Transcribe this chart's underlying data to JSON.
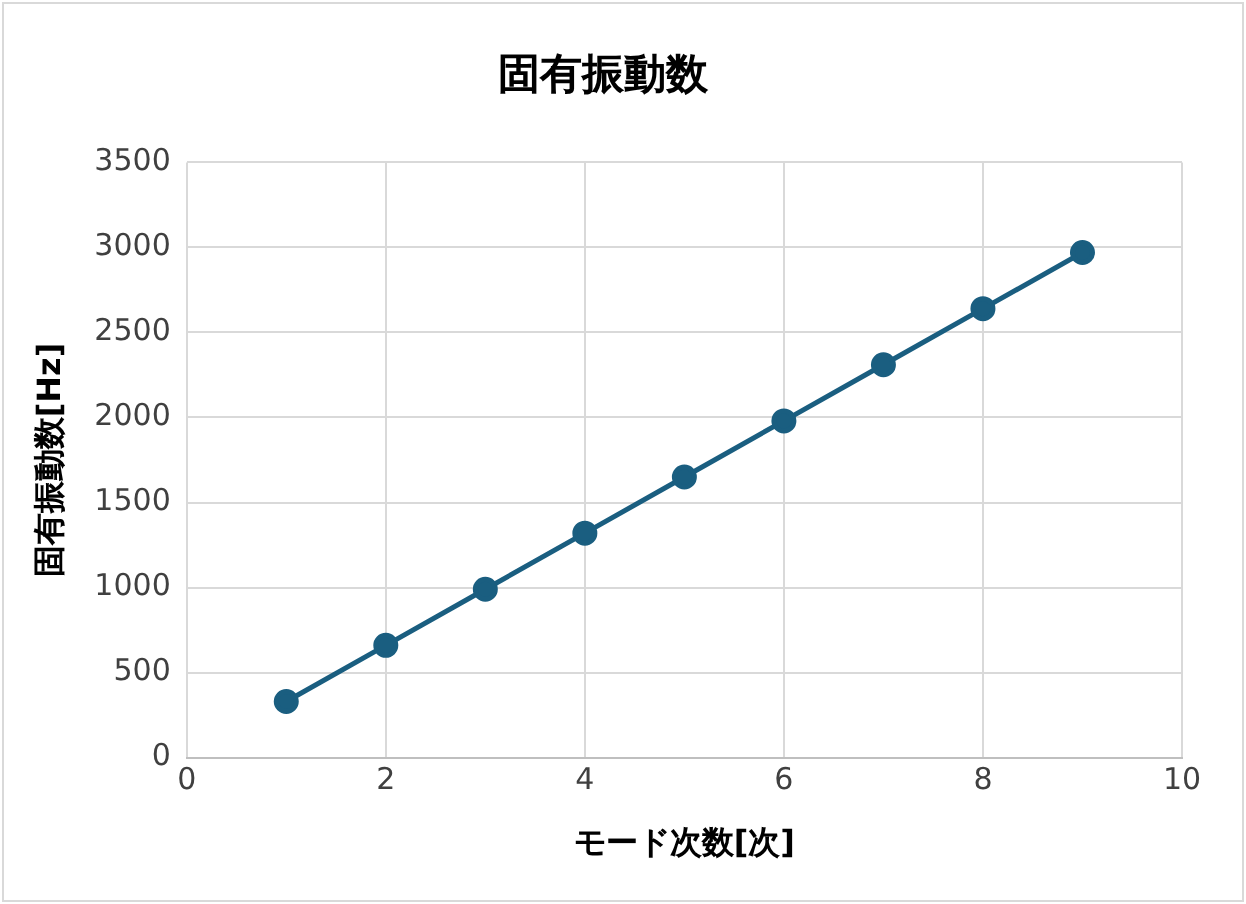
{
  "chart_data": {
    "type": "line",
    "title": "固有振動数",
    "xlabel": "モード次数[次]",
    "ylabel": "固有振動数[Hz]",
    "x": [
      1,
      2,
      3,
      4,
      5,
      6,
      7,
      8,
      9
    ],
    "series": [
      {
        "color": "#1a5e80",
        "values": [
          330,
          660,
          990,
          1320,
          1650,
          1980,
          2310,
          2640,
          2970
        ]
      }
    ],
    "xlim": [
      0,
      10
    ],
    "xticks": [
      0,
      2,
      4,
      6,
      8,
      10
    ],
    "ylim": [
      0,
      3500
    ],
    "yticks": [
      0,
      500,
      1000,
      1500,
      2000,
      2500,
      3000,
      3500
    ],
    "grid": true,
    "legend": false,
    "marker": "circle",
    "line_style": "solid"
  }
}
